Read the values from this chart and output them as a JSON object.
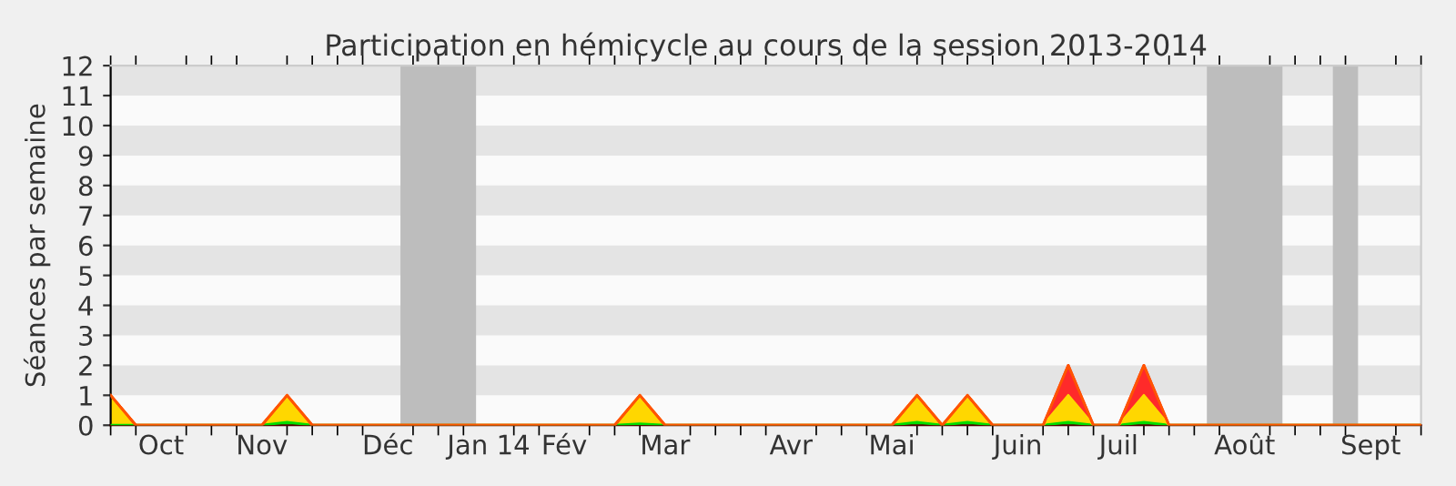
{
  "chart_data": {
    "type": "area",
    "stacked": true,
    "title": "Participation en hémicycle au cours de la session 2013-2014",
    "ylabel": "Séances par semaine",
    "categories": [
      null,
      null,
      "Oct",
      null,
      null,
      null,
      "Nov",
      null,
      null,
      null,
      null,
      "Déc",
      null,
      null,
      null,
      "Jan 14",
      null,
      null,
      "Fév",
      null,
      null,
      null,
      "Mar",
      null,
      null,
      null,
      null,
      "Avr",
      null,
      null,
      null,
      "Mai",
      null,
      null,
      null,
      null,
      "Juin",
      null,
      null,
      null,
      "Juil",
      null,
      null,
      null,
      null,
      "Août",
      null,
      null,
      null,
      null,
      "Sept",
      null,
      null
    ],
    "series": [
      {
        "color": "#00dd00",
        "values": [
          0,
          0,
          0,
          0,
          0,
          0,
          0,
          0.1,
          0,
          0,
          0,
          0,
          0,
          0,
          0,
          0,
          0,
          0,
          0,
          0,
          0,
          0.05,
          0,
          0,
          0,
          0,
          0,
          0,
          0,
          0,
          0,
          0,
          0.1,
          0,
          0.1,
          0,
          0,
          0,
          0.1,
          0,
          0,
          0.1,
          0,
          0,
          0,
          0,
          0,
          0,
          0,
          0,
          0,
          0,
          0
        ]
      },
      {
        "color": "#ffd700",
        "values": [
          1,
          0,
          0,
          0,
          0,
          0,
          0,
          0.9,
          0,
          0,
          0,
          0,
          0,
          0,
          0,
          0,
          0,
          0,
          0,
          0,
          0,
          0.95,
          0,
          0,
          0,
          0,
          0,
          0,
          0,
          0,
          0,
          0,
          0.9,
          0,
          0.9,
          0,
          0,
          0,
          0.9,
          0,
          0,
          0.9,
          0,
          0,
          0,
          0,
          0,
          0,
          0,
          0,
          0,
          0,
          0
        ]
      },
      {
        "color": "#ff2a2a",
        "values": [
          0,
          0,
          0,
          0,
          0,
          0,
          0,
          0,
          0,
          0,
          0,
          0,
          0,
          0,
          0,
          0,
          0,
          0,
          0,
          0,
          0,
          0,
          0,
          0,
          0,
          0,
          0,
          0,
          0,
          0,
          0,
          0,
          0,
          0,
          0,
          0,
          0,
          0,
          1,
          0,
          0,
          1,
          0,
          0,
          0,
          0,
          0,
          0,
          0,
          0,
          0,
          0,
          0
        ]
      }
    ],
    "ylim": [
      0,
      12
    ],
    "yticks": [
      0,
      1,
      2,
      3,
      4,
      5,
      6,
      7,
      8,
      9,
      10,
      11,
      12
    ],
    "legend": false
  }
}
